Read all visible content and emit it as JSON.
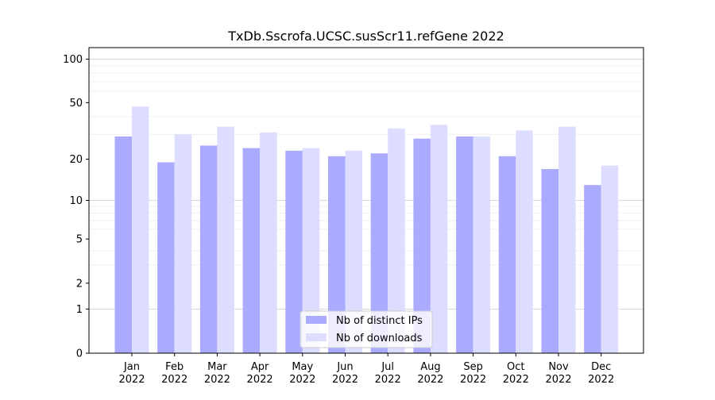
{
  "chart_data": {
    "type": "bar",
    "title": "TxDb.Sscrofa.UCSC.susScr11.refGene 2022",
    "xlabel": "",
    "ylabel": "",
    "yscale": "log(1+y)",
    "ylim": [
      0,
      120
    ],
    "yticks": [
      0,
      1,
      2,
      5,
      10,
      20,
      50,
      100
    ],
    "grid": "horizontal",
    "categories": [
      "Jan\n2022",
      "Feb\n2022",
      "Mar\n2022",
      "Apr\n2022",
      "May\n2022",
      "Jun\n2022",
      "Jul\n2022",
      "Aug\n2022",
      "Sep\n2022",
      "Oct\n2022",
      "Nov\n2022",
      "Dec\n2022"
    ],
    "category_lines": [
      [
        "Jan",
        "2022"
      ],
      [
        "Feb",
        "2022"
      ],
      [
        "Mar",
        "2022"
      ],
      [
        "Apr",
        "2022"
      ],
      [
        "May",
        "2022"
      ],
      [
        "Jun",
        "2022"
      ],
      [
        "Jul",
        "2022"
      ],
      [
        "Aug",
        "2022"
      ],
      [
        "Sep",
        "2022"
      ],
      [
        "Oct",
        "2022"
      ],
      [
        "Nov",
        "2022"
      ],
      [
        "Dec",
        "2022"
      ]
    ],
    "series": [
      {
        "name": "Nb of distinct IPs",
        "color": "#aaaaff",
        "values": [
          29,
          19,
          25,
          24,
          23,
          21,
          22,
          28,
          29,
          21,
          17,
          13
        ]
      },
      {
        "name": "Nb of downloads",
        "color": "#ddddff",
        "values": [
          47,
          30,
          34,
          31,
          24,
          23,
          33,
          35,
          29,
          32,
          34,
          18
        ]
      }
    ],
    "legend": "lower-center"
  }
}
